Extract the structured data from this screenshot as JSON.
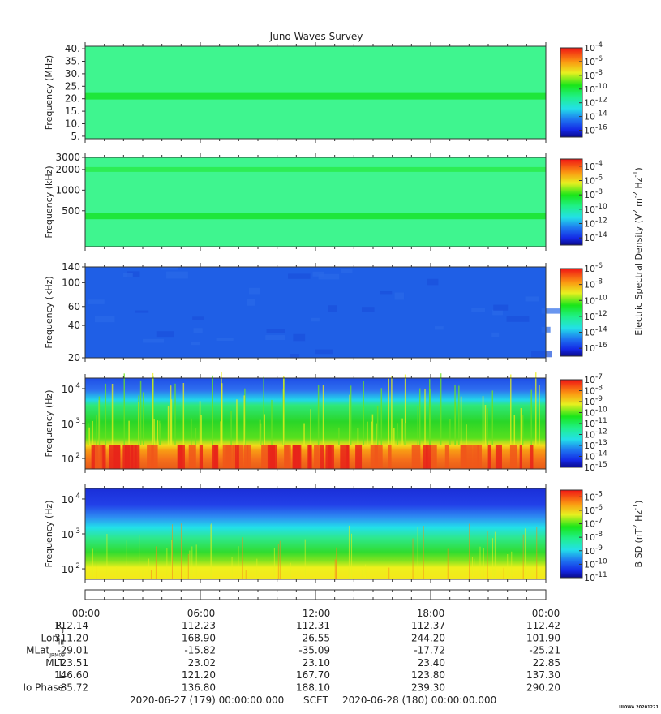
{
  "title": "Juno Waves Survey",
  "footer_stamp": "UIOWA 20201221",
  "panels": [
    {
      "ylabel": "Frequency (MHz)",
      "yscale": "linear",
      "ylim": [
        4,
        41
      ],
      "yticks": [
        "5.",
        "10.",
        "15.",
        "20.",
        "25.",
        "30.",
        "35.",
        "40."
      ],
      "ytick_values": [
        5,
        10,
        15,
        20,
        25,
        30,
        35,
        40
      ],
      "background": "#3ff58f",
      "band": {
        "value": 21,
        "color": "#1ee63a"
      },
      "colorbar": {
        "min_exp": -17,
        "max_exp": -4,
        "ticks": [
          {
            "base": "10",
            "exp": "-4",
            "v": -4
          },
          {
            "base": "10",
            "exp": "-6",
            "v": -6
          },
          {
            "base": "10",
            "exp": "-8",
            "v": -8
          },
          {
            "base": "10",
            "exp": "-10",
            "v": -10
          },
          {
            "base": "10",
            "exp": "-12",
            "v": -12
          },
          {
            "base": "10",
            "exp": "-14",
            "v": -14
          },
          {
            "base": "10",
            "exp": "-16",
            "v": -16
          }
        ]
      }
    },
    {
      "ylabel": "Frequency (kHz)",
      "yscale": "log",
      "ylim": [
        150,
        3000
      ],
      "yticks": [
        "3000",
        "2000",
        "1000",
        "500"
      ],
      "ytick_values": [
        3000,
        2000,
        1000,
        500
      ],
      "background": "#3ff58f",
      "band": {
        "value": 420,
        "color": "#1ee63a"
      },
      "band2": {
        "value": 2000,
        "color": "#2ded55"
      },
      "colorbar": {
        "min_exp": -15,
        "max_exp": -3,
        "ticks": [
          {
            "base": "10",
            "exp": "-4",
            "v": -4
          },
          {
            "base": "10",
            "exp": "-6",
            "v": -6
          },
          {
            "base": "10",
            "exp": "-8",
            "v": -8
          },
          {
            "base": "10",
            "exp": "-10",
            "v": -10
          },
          {
            "base": "10",
            "exp": "-12",
            "v": -12
          },
          {
            "base": "10",
            "exp": "-14",
            "v": -14
          }
        ]
      }
    },
    {
      "ylabel": "Frequency (kHz)",
      "yscale": "log",
      "ylim": [
        20,
        140
      ],
      "yticks": [
        "140",
        "100",
        "60",
        "40",
        "20"
      ],
      "ytick_values": [
        140,
        100,
        60,
        40,
        20
      ],
      "background": "#1f5fe6",
      "colorbar": {
        "min_exp": -17,
        "max_exp": -6,
        "ticks": [
          {
            "base": "10",
            "exp": "-6",
            "v": -6
          },
          {
            "base": "10",
            "exp": "-8",
            "v": -8
          },
          {
            "base": "10",
            "exp": "-10",
            "v": -10
          },
          {
            "base": "10",
            "exp": "-12",
            "v": -12
          },
          {
            "base": "10",
            "exp": "-14",
            "v": -14
          },
          {
            "base": "10",
            "exp": "-16",
            "v": -16
          }
        ]
      }
    },
    {
      "ylabel": "Frequency (Hz)",
      "yscale": "log",
      "ylim": [
        50,
        20000
      ],
      "yticks": [
        {
          "base": "10",
          "exp": "4"
        },
        {
          "base": "10",
          "exp": "3"
        },
        {
          "base": "10",
          "exp": "2"
        }
      ],
      "ytick_values": [
        10000,
        1000,
        100
      ],
      "colorbar": {
        "min_exp": -15,
        "max_exp": -7,
        "ticks": [
          {
            "base": "10",
            "exp": "-7",
            "v": -7
          },
          {
            "base": "10",
            "exp": "-8",
            "v": -8
          },
          {
            "base": "10",
            "exp": "-9",
            "v": -9
          },
          {
            "base": "10",
            "exp": "-10",
            "v": -10
          },
          {
            "base": "10",
            "exp": "-11",
            "v": -11
          },
          {
            "base": "10",
            "exp": "-12",
            "v": -12
          },
          {
            "base": "10",
            "exp": "-13",
            "v": -13
          },
          {
            "base": "10",
            "exp": "-14",
            "v": -14
          },
          {
            "base": "10",
            "exp": "-15",
            "v": -15
          }
        ]
      }
    },
    {
      "ylabel": "Frequency (Hz)",
      "yscale": "log",
      "ylim": [
        50,
        20000
      ],
      "yticks": [
        {
          "base": "10",
          "exp": "4"
        },
        {
          "base": "10",
          "exp": "3"
        },
        {
          "base": "10",
          "exp": "2"
        }
      ],
      "ytick_values": [
        10000,
        1000,
        100
      ],
      "colorbar": {
        "min_exp": -11,
        "max_exp": -4.5,
        "ticks": [
          {
            "base": "10",
            "exp": "-5",
            "v": -5
          },
          {
            "base": "10",
            "exp": "-6",
            "v": -6
          },
          {
            "base": "10",
            "exp": "-7",
            "v": -7
          },
          {
            "base": "10",
            "exp": "-8",
            "v": -8
          },
          {
            "base": "10",
            "exp": "-9",
            "v": -9
          },
          {
            "base": "10",
            "exp": "-10",
            "v": -10
          },
          {
            "base": "10",
            "exp": "-11",
            "v": -11
          }
        ]
      }
    }
  ],
  "colorbar_label_electric": "Electric Spectral Density (V² m⁻² Hz⁻¹)",
  "colorbar_label_electric_parts": {
    "pre": "Electric Spectral Density (V",
    "sup1": "2",
    "mid": " m",
    "sup2": "-2",
    "mid2": " Hz",
    "sup3": "-1",
    "post": ")"
  },
  "colorbar_label_magnetic_parts": {
    "pre": "B SD (nT",
    "sup1": "2",
    "mid": " Hz",
    "sup2": "-1",
    "post": ")"
  },
  "time_axis": {
    "labels": [
      "00:00",
      "06:00",
      "12:00",
      "18:00",
      "00:00"
    ]
  },
  "ephemeris": [
    {
      "label": "R",
      "sub": "J",
      "values": [
        "112.14",
        "112.23",
        "112.31",
        "112.37",
        "112.42"
      ]
    },
    {
      "label": "Lon",
      "sub": "III",
      "values": [
        "311.20",
        "168.90",
        "26.55",
        "244.20",
        "101.90"
      ]
    },
    {
      "label": "MLat",
      "sub": "JRM09",
      "values": [
        "-29.01",
        "-15.82",
        "-35.09",
        "-17.72",
        "-25.21"
      ]
    },
    {
      "label": "MLT",
      "sub": "",
      "values": [
        "23.51",
        "23.02",
        "23.10",
        "23.40",
        "22.85"
      ]
    },
    {
      "label": "L",
      "sub": "",
      "values": [
        "146.60",
        "121.20",
        "167.70",
        "123.80",
        "137.30"
      ]
    },
    {
      "label": "Io Phase",
      "sub": "",
      "values": [
        "85.72",
        "136.80",
        "188.10",
        "239.30",
        "290.20"
      ]
    }
  ],
  "scet": {
    "start": "2020-06-27 (179) 00:00:00.000",
    "label": "SCET",
    "end": "2020-06-28 (180) 00:00:00.000"
  },
  "chart_data": {
    "type": "heatmap",
    "title": "Juno Waves Survey",
    "x_range_hours": [
      0,
      24
    ],
    "xticks": [
      "00:00",
      "06:00",
      "12:00",
      "18:00",
      "00:00"
    ],
    "series": [
      {
        "name": "Frequency (MHz)",
        "ylim": [
          5,
          40
        ],
        "dominant_level_exp": -12,
        "band_MHz": 21
      },
      {
        "name": "Frequency (kHz)",
        "ylim": [
          150,
          3000
        ],
        "dominant_level_exp": -12,
        "band_kHz": [
          420,
          2000
        ]
      },
      {
        "name": "Frequency (kHz)",
        "ylim": [
          20,
          140
        ],
        "dominant_level_exp": -15
      },
      {
        "name": "Frequency (Hz)",
        "ylim": [
          50,
          20000
        ],
        "cutoff_Hz_approx": 3500,
        "intense_band_Hz": [
          60,
          250
        ]
      },
      {
        "name": "Frequency (Hz)",
        "ylim": [
          50,
          20000
        ],
        "cutoff_Hz_approx": 1000,
        "intense_band_Hz": [
          50,
          150
        ]
      }
    ]
  }
}
